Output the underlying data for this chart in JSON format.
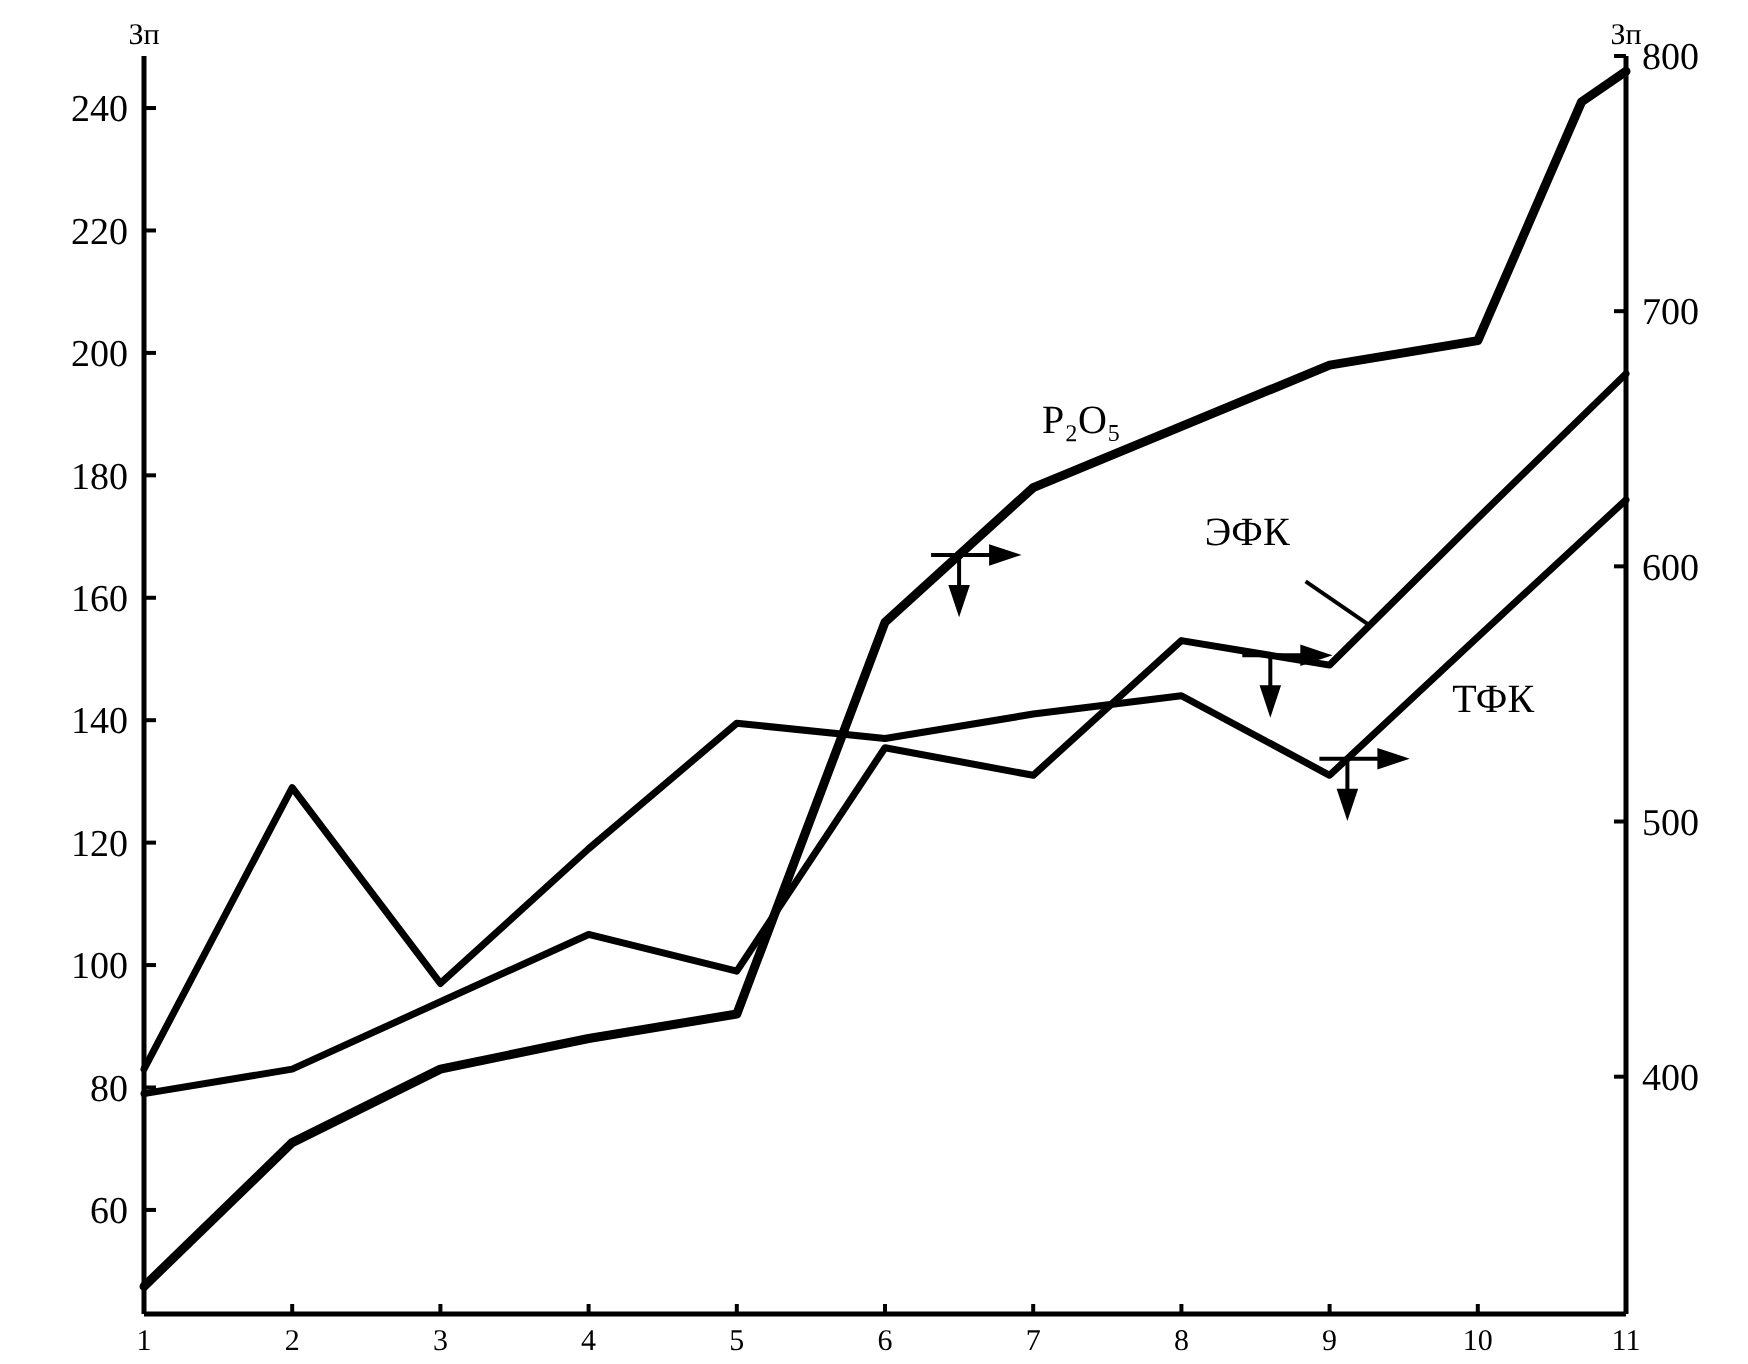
{
  "chart_data": {
    "type": "line",
    "ylabel": "Зп",
    "y2label": "Зп",
    "x": [
      1,
      2,
      3,
      4,
      5,
      6,
      7,
      8,
      9,
      10,
      11
    ],
    "series": [
      {
        "name": "P₂O₅",
        "color": "#000000",
        "x": [
          1,
          2,
          3,
          4,
          5,
          6,
          7,
          8,
          9,
          10,
          10.7,
          11
        ],
        "values": [
          47.5,
          71,
          83,
          88,
          92,
          156,
          178,
          188,
          198,
          202,
          241,
          246
        ]
      },
      {
        "name": "ЭФК",
        "color": "#000000",
        "values": [
          79,
          83,
          94,
          105,
          99,
          135.5,
          131,
          153,
          149,
          173,
          196.6
        ]
      },
      {
        "name": "ТФК",
        "color": "#000000",
        "values": [
          83,
          129,
          97,
          119,
          139.5,
          137,
          141,
          144,
          131,
          153.6,
          176
        ]
      }
    ],
    "xlim": [
      1,
      11
    ],
    "xticks": [
      1,
      2,
      3,
      4,
      5,
      6,
      7,
      8,
      9,
      10,
      11
    ],
    "ylim": [
      43,
      248.5
    ],
    "yticks": [
      60,
      80,
      100,
      120,
      140,
      160,
      180,
      200,
      220,
      240
    ],
    "y2lim": [
      307,
      800
    ],
    "y2ticks": [
      400,
      500,
      600,
      700,
      800
    ],
    "grid": false,
    "marker": "none",
    "line_style": "solid"
  }
}
